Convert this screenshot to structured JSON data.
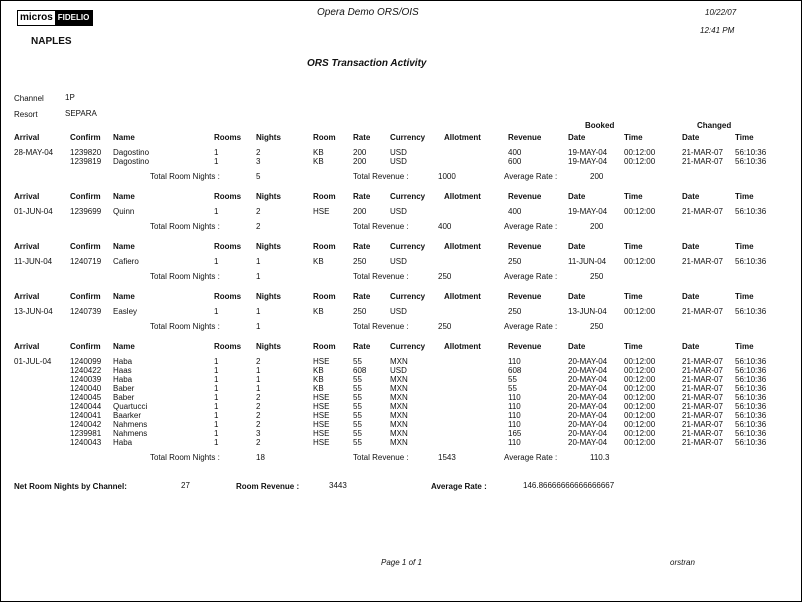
{
  "header": {
    "logo_text": "micros-FIDELIO",
    "logo_left": "micros",
    "logo_right": "FIDELIO",
    "title": "Opera Demo ORS/OIS",
    "date": "10/22/07",
    "time": "12:41 PM",
    "property": "NAPLES",
    "report_title": "ORS Transaction Activity"
  },
  "filters": {
    "channel_label": "Channel",
    "channel_value": "1P",
    "resort_label": "Resort",
    "resort_value": "SEPARA"
  },
  "group_labels": {
    "booked": "Booked",
    "changed": "Changed"
  },
  "columns": [
    "Arrival",
    "Confirm",
    "Name",
    "Rooms",
    "Nights",
    "Room",
    "Rate",
    "Currency",
    "Allotment",
    "Revenue",
    "Date",
    "Time",
    "Date",
    "Time"
  ],
  "totals_labels": {
    "room_nights": "Total Room Nights :",
    "revenue": "Total Revenue :",
    "avg_rate": "Average Rate :"
  },
  "groups": [
    {
      "arrival": "28-MAY-04",
      "rows": [
        [
          "1239820",
          "Dagostino",
          "1",
          "2",
          "KB",
          "200",
          "USD",
          "",
          "400",
          "19-MAY-04",
          "00:12:00",
          "21-MAR-07",
          "56:10:36"
        ],
        [
          "1239819",
          "Dagostino",
          "1",
          "3",
          "KB",
          "200",
          "USD",
          "",
          "600",
          "19-MAY-04",
          "00:12:00",
          "21-MAR-07",
          "56:10:36"
        ]
      ],
      "total_room_nights": "5",
      "total_revenue": "1000",
      "average_rate": "200"
    },
    {
      "arrival": "01-JUN-04",
      "rows": [
        [
          "1239699",
          "Quinn",
          "1",
          "2",
          "HSE",
          "200",
          "USD",
          "",
          "400",
          "19-MAY-04",
          "00:12:00",
          "21-MAR-07",
          "56:10:36"
        ]
      ],
      "total_room_nights": "2",
      "total_revenue": "400",
      "average_rate": "200"
    },
    {
      "arrival": "11-JUN-04",
      "rows": [
        [
          "1240719",
          "Cafiero",
          "1",
          "1",
          "KB",
          "250",
          "USD",
          "",
          "250",
          "11-JUN-04",
          "00:12:00",
          "21-MAR-07",
          "56:10:36"
        ]
      ],
      "total_room_nights": "1",
      "total_revenue": "250",
      "average_rate": "250"
    },
    {
      "arrival": "13-JUN-04",
      "rows": [
        [
          "1240739",
          "Easley",
          "1",
          "1",
          "KB",
          "250",
          "USD",
          "",
          "250",
          "13-JUN-04",
          "00:12:00",
          "21-MAR-07",
          "56:10:36"
        ]
      ],
      "total_room_nights": "1",
      "total_revenue": "250",
      "average_rate": "250"
    },
    {
      "arrival": "01-JUL-04",
      "rows": [
        [
          "1240099",
          "Haba",
          "1",
          "2",
          "HSE",
          "55",
          "MXN",
          "",
          "110",
          "20-MAY-04",
          "00:12:00",
          "21-MAR-07",
          "56:10:36"
        ],
        [
          "1240422",
          "Haas",
          "1",
          "1",
          "KB",
          "608",
          "USD",
          "",
          "608",
          "20-MAY-04",
          "00:12:00",
          "21-MAR-07",
          "56:10:36"
        ],
        [
          "1240039",
          "Haba",
          "1",
          "1",
          "KB",
          "55",
          "MXN",
          "",
          "55",
          "20-MAY-04",
          "00:12:00",
          "21-MAR-07",
          "56:10:36"
        ],
        [
          "1240040",
          "Baber",
          "1",
          "1",
          "KB",
          "55",
          "MXN",
          "",
          "55",
          "20-MAY-04",
          "00:12:00",
          "21-MAR-07",
          "56:10:36"
        ],
        [
          "1240045",
          "Baber",
          "1",
          "2",
          "HSE",
          "55",
          "MXN",
          "",
          "110",
          "20-MAY-04",
          "00:12:00",
          "21-MAR-07",
          "56:10:36"
        ],
        [
          "1240044",
          "Quartucci",
          "1",
          "2",
          "HSE",
          "55",
          "MXN",
          "",
          "110",
          "20-MAY-04",
          "00:12:00",
          "21-MAR-07",
          "56:10:36"
        ],
        [
          "1240041",
          "Baarker",
          "1",
          "2",
          "HSE",
          "55",
          "MXN",
          "",
          "110",
          "20-MAY-04",
          "00:12:00",
          "21-MAR-07",
          "56:10:36"
        ],
        [
          "1240042",
          "Nahmens",
          "1",
          "2",
          "HSE",
          "55",
          "MXN",
          "",
          "110",
          "20-MAY-04",
          "00:12:00",
          "21-MAR-07",
          "56:10:36"
        ],
        [
          "1239981",
          "Nahmens",
          "1",
          "3",
          "HSE",
          "55",
          "MXN",
          "",
          "165",
          "20-MAY-04",
          "00:12:00",
          "21-MAR-07",
          "56:10:36"
        ],
        [
          "1240043",
          "Haba",
          "1",
          "2",
          "HSE",
          "55",
          "MXN",
          "",
          "110",
          "20-MAY-04",
          "00:12:00",
          "21-MAR-07",
          "56:10:36"
        ]
      ],
      "total_room_nights": "18",
      "total_revenue": "1543",
      "average_rate": "110.3"
    }
  ],
  "summary": {
    "net_label": "Net Room Nights by Channel:",
    "net_value": "27",
    "revenue_label": "Room Revenue :",
    "revenue_value": "3443",
    "avg_label": "Average Rate :",
    "avg_value": "146.86666666666666667"
  },
  "footer": {
    "page": "Page 1 of 1",
    "report_code": "orstran"
  }
}
